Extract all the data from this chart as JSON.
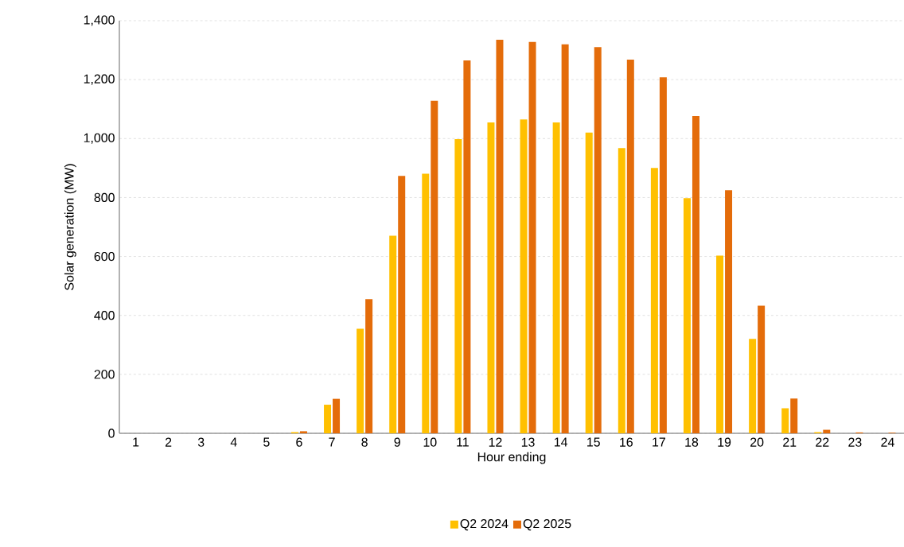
{
  "chart_data": {
    "type": "bar",
    "xlabel": "Hour ending",
    "ylabel": "Solar generation (MW)",
    "categories": [
      "1",
      "2",
      "3",
      "4",
      "5",
      "6",
      "7",
      "8",
      "9",
      "10",
      "11",
      "12",
      "13",
      "14",
      "15",
      "16",
      "17",
      "18",
      "19",
      "20",
      "21",
      "22",
      "23",
      "24"
    ],
    "series": [
      {
        "name": "Q2 2024",
        "color": "#ffc000",
        "values": [
          0,
          0,
          0,
          0,
          0,
          4,
          97,
          355,
          670,
          881,
          998,
          1055,
          1065,
          1055,
          1020,
          968,
          900,
          798,
          603,
          320,
          85,
          4,
          0,
          0
        ]
      },
      {
        "name": "Q2 2025",
        "color": "#e46c0a",
        "values": [
          0,
          0,
          0,
          0,
          0,
          7,
          117,
          455,
          873,
          1128,
          1265,
          1335,
          1328,
          1320,
          1310,
          1268,
          1208,
          1076,
          825,
          433,
          118,
          12,
          3,
          2
        ]
      }
    ],
    "ylim": [
      0,
      1400
    ],
    "yticks": [
      0,
      200,
      400,
      600,
      800,
      {
        "value": 1000,
        "label": "1,000"
      },
      {
        "value": 1200,
        "label": "1,200"
      },
      {
        "value": 1400,
        "label": "1,400"
      }
    ],
    "grid": "y",
    "legend": "bottom"
  }
}
